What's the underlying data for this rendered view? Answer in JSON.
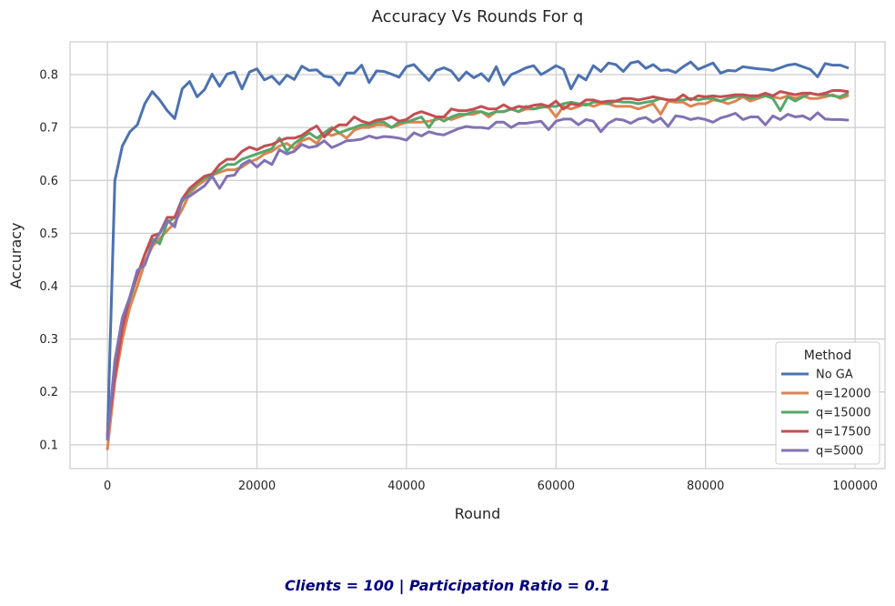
{
  "chart_data": {
    "type": "line",
    "title": "Accuracy Vs Rounds For q",
    "xlabel": "Round",
    "ylabel": "Accuracy",
    "xlim": [
      -5000,
      104000
    ],
    "ylim": [
      0.055,
      0.862
    ],
    "xticks": [
      0,
      20000,
      40000,
      60000,
      80000,
      100000
    ],
    "yticks": [
      0.1,
      0.2,
      0.3,
      0.4,
      0.5,
      0.6,
      0.7,
      0.8
    ],
    "grid": true,
    "legend": {
      "title": "Method",
      "position": "lower right"
    },
    "x": [
      0,
      1000,
      2000,
      3000,
      4000,
      5000,
      6000,
      7000,
      8000,
      9000,
      10000,
      11000,
      12000,
      13000,
      14000,
      15000,
      16000,
      17000,
      18000,
      19000,
      20000,
      21000,
      22000,
      23000,
      24000,
      25000,
      26000,
      27000,
      28000,
      29000,
      30000,
      31000,
      32000,
      33000,
      34000,
      35000,
      36000,
      37000,
      38000,
      39000,
      40000,
      41000,
      42000,
      43000,
      44000,
      45000,
      46000,
      47000,
      48000,
      49000,
      50000,
      51000,
      52000,
      53000,
      54000,
      55000,
      56000,
      57000,
      58000,
      59000,
      60000,
      61000,
      62000,
      63000,
      64000,
      65000,
      66000,
      67000,
      68000,
      69000,
      70000,
      71000,
      72000,
      73000,
      74000,
      75000,
      76000,
      77000,
      78000,
      79000,
      80000,
      81000,
      82000,
      83000,
      84000,
      85000,
      86000,
      87000,
      88000,
      89000,
      90000,
      91000,
      92000,
      93000,
      94000,
      95000,
      96000,
      97000,
      98000,
      99000
    ],
    "series": [
      {
        "name": "No GA",
        "color": "#4c72b0",
        "values": [
          0.112,
          0.6,
          0.665,
          0.692,
          0.705,
          0.745,
          0.768,
          0.752,
          0.732,
          0.717,
          0.773,
          0.787,
          0.758,
          0.772,
          0.801,
          0.778,
          0.801,
          0.805,
          0.773,
          0.805,
          0.811,
          0.79,
          0.797,
          0.782,
          0.799,
          0.791,
          0.816,
          0.808,
          0.809,
          0.797,
          0.795,
          0.78,
          0.803,
          0.803,
          0.818,
          0.785,
          0.807,
          0.806,
          0.801,
          0.795,
          0.815,
          0.819,
          0.804,
          0.789,
          0.808,
          0.813,
          0.807,
          0.789,
          0.805,
          0.794,
          0.802,
          0.788,
          0.815,
          0.781,
          0.8,
          0.806,
          0.813,
          0.817,
          0.8,
          0.808,
          0.817,
          0.81,
          0.773,
          0.799,
          0.79,
          0.817,
          0.806,
          0.822,
          0.819,
          0.806,
          0.822,
          0.825,
          0.812,
          0.819,
          0.808,
          0.809,
          0.804,
          0.815,
          0.824,
          0.81,
          0.816,
          0.822,
          0.803,
          0.808,
          0.807,
          0.815,
          0.813,
          0.811,
          0.81,
          0.808,
          0.813,
          0.818,
          0.82,
          0.815,
          0.81,
          0.796,
          0.821,
          0.818,
          0.818,
          0.813
        ]
      },
      {
        "name": "q=12000",
        "color": "#dd8452",
        "values": [
          0.092,
          0.22,
          0.3,
          0.36,
          0.4,
          0.445,
          0.475,
          0.49,
          0.505,
          0.52,
          0.545,
          0.575,
          0.59,
          0.6,
          0.61,
          0.615,
          0.62,
          0.62,
          0.625,
          0.635,
          0.64,
          0.65,
          0.655,
          0.665,
          0.67,
          0.66,
          0.675,
          0.68,
          0.67,
          0.69,
          0.685,
          0.69,
          0.68,
          0.695,
          0.7,
          0.7,
          0.705,
          0.705,
          0.7,
          0.705,
          0.71,
          0.71,
          0.71,
          0.712,
          0.715,
          0.72,
          0.715,
          0.72,
          0.725,
          0.725,
          0.73,
          0.72,
          0.73,
          0.73,
          0.735,
          0.73,
          0.735,
          0.735,
          0.74,
          0.738,
          0.72,
          0.74,
          0.735,
          0.74,
          0.745,
          0.74,
          0.745,
          0.745,
          0.74,
          0.74,
          0.74,
          0.735,
          0.74,
          0.745,
          0.725,
          0.75,
          0.748,
          0.748,
          0.74,
          0.745,
          0.745,
          0.752,
          0.75,
          0.745,
          0.75,
          0.758,
          0.75,
          0.755,
          0.76,
          0.758,
          0.755,
          0.76,
          0.755,
          0.76,
          0.755,
          0.755,
          0.758,
          0.762,
          0.755,
          0.76
        ]
      },
      {
        "name": "q=15000",
        "color": "#55a868",
        "values": [
          0.115,
          0.24,
          0.33,
          0.375,
          0.42,
          0.46,
          0.49,
          0.48,
          0.52,
          0.53,
          0.56,
          0.58,
          0.595,
          0.605,
          0.61,
          0.62,
          0.63,
          0.63,
          0.64,
          0.645,
          0.65,
          0.655,
          0.66,
          0.68,
          0.655,
          0.67,
          0.68,
          0.69,
          0.68,
          0.69,
          0.7,
          0.69,
          0.695,
          0.7,
          0.705,
          0.705,
          0.71,
          0.71,
          0.7,
          0.71,
          0.71,
          0.715,
          0.72,
          0.7,
          0.72,
          0.712,
          0.72,
          0.725,
          0.725,
          0.73,
          0.73,
          0.725,
          0.73,
          0.73,
          0.735,
          0.73,
          0.74,
          0.735,
          0.738,
          0.74,
          0.74,
          0.745,
          0.748,
          0.745,
          0.742,
          0.748,
          0.748,
          0.745,
          0.75,
          0.748,
          0.748,
          0.745,
          0.748,
          0.75,
          0.755,
          0.752,
          0.752,
          0.752,
          0.755,
          0.752,
          0.755,
          0.755,
          0.75,
          0.755,
          0.758,
          0.76,
          0.755,
          0.758,
          0.76,
          0.755,
          0.732,
          0.758,
          0.75,
          0.758,
          0.765,
          0.762,
          0.762,
          0.76,
          0.758,
          0.765
        ]
      },
      {
        "name": "q=17500",
        "color": "#c44e52",
        "values": [
          0.12,
          0.23,
          0.32,
          0.38,
          0.42,
          0.46,
          0.495,
          0.5,
          0.53,
          0.53,
          0.565,
          0.585,
          0.597,
          0.608,
          0.612,
          0.63,
          0.64,
          0.64,
          0.655,
          0.663,
          0.658,
          0.665,
          0.668,
          0.675,
          0.68,
          0.68,
          0.685,
          0.695,
          0.703,
          0.682,
          0.696,
          0.705,
          0.705,
          0.72,
          0.712,
          0.708,
          0.714,
          0.716,
          0.72,
          0.712,
          0.715,
          0.725,
          0.73,
          0.725,
          0.72,
          0.72,
          0.735,
          0.732,
          0.732,
          0.735,
          0.74,
          0.735,
          0.735,
          0.743,
          0.735,
          0.74,
          0.738,
          0.742,
          0.744,
          0.74,
          0.75,
          0.735,
          0.745,
          0.742,
          0.752,
          0.752,
          0.748,
          0.75,
          0.75,
          0.755,
          0.755,
          0.752,
          0.755,
          0.758,
          0.755,
          0.752,
          0.752,
          0.762,
          0.752,
          0.76,
          0.758,
          0.76,
          0.758,
          0.76,
          0.762,
          0.762,
          0.76,
          0.76,
          0.765,
          0.76,
          0.768,
          0.765,
          0.762,
          0.765,
          0.765,
          0.762,
          0.765,
          0.77,
          0.77,
          0.768
        ]
      },
      {
        "name": "q=5000",
        "color": "#8172b3",
        "values": [
          0.11,
          0.26,
          0.34,
          0.38,
          0.43,
          0.44,
          0.48,
          0.5,
          0.525,
          0.512,
          0.565,
          0.57,
          0.58,
          0.59,
          0.608,
          0.585,
          0.608,
          0.61,
          0.63,
          0.638,
          0.625,
          0.638,
          0.63,
          0.658,
          0.65,
          0.655,
          0.668,
          0.662,
          0.665,
          0.675,
          0.662,
          0.668,
          0.675,
          0.676,
          0.678,
          0.684,
          0.68,
          0.683,
          0.682,
          0.68,
          0.676,
          0.69,
          0.684,
          0.692,
          0.688,
          0.686,
          0.692,
          0.698,
          0.702,
          0.7,
          0.7,
          0.698,
          0.71,
          0.71,
          0.7,
          0.708,
          0.708,
          0.71,
          0.712,
          0.696,
          0.712,
          0.716,
          0.716,
          0.705,
          0.715,
          0.712,
          0.692,
          0.708,
          0.716,
          0.714,
          0.708,
          0.716,
          0.719,
          0.71,
          0.718,
          0.702,
          0.722,
          0.72,
          0.715,
          0.718,
          0.715,
          0.71,
          0.718,
          0.722,
          0.727,
          0.715,
          0.72,
          0.72,
          0.705,
          0.722,
          0.715,
          0.725,
          0.72,
          0.722,
          0.715,
          0.728,
          0.716,
          0.715,
          0.715,
          0.714
        ]
      }
    ]
  },
  "caption": "Clients = 100  |  Participation Ratio = 0.1"
}
